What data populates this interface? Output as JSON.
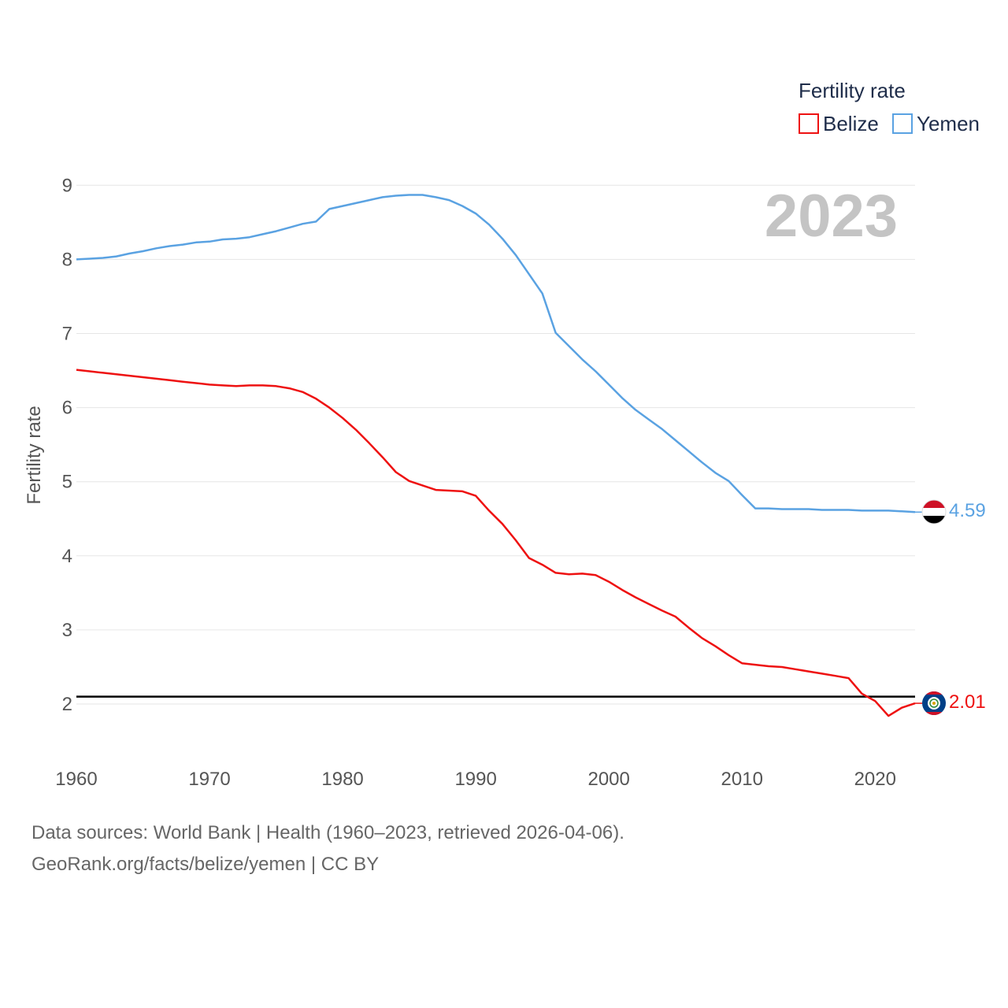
{
  "chart_data": {
    "type": "line",
    "title": "",
    "xlabel": "",
    "ylabel": "Fertility rate",
    "xlim": [
      1960,
      2023
    ],
    "ylim": [
      1.5,
      9.3
    ],
    "x_ticks": [
      1960,
      1970,
      1980,
      1990,
      2000,
      2010,
      2020
    ],
    "y_ticks": [
      2,
      3,
      4,
      5,
      6,
      7,
      8,
      9
    ],
    "grid": true,
    "legend_title": "Fertility rate",
    "legend_position": "top-right",
    "year_label": "2023",
    "reference_line": {
      "y": 2.1
    },
    "x": [
      1960,
      1961,
      1962,
      1963,
      1964,
      1965,
      1966,
      1967,
      1968,
      1969,
      1970,
      1971,
      1972,
      1973,
      1974,
      1975,
      1976,
      1977,
      1978,
      1979,
      1980,
      1981,
      1982,
      1983,
      1984,
      1985,
      1986,
      1987,
      1988,
      1989,
      1990,
      1991,
      1992,
      1993,
      1994,
      1995,
      1996,
      1997,
      1998,
      1999,
      2000,
      2001,
      2002,
      2003,
      2004,
      2005,
      2006,
      2007,
      2008,
      2009,
      2010,
      2011,
      2012,
      2013,
      2014,
      2015,
      2016,
      2017,
      2018,
      2019,
      2020,
      2021,
      2022,
      2023
    ],
    "series": [
      {
        "name": "Belize",
        "color": "#ee1111",
        "end_label": "2.01",
        "values": [
          6.51,
          6.49,
          6.47,
          6.45,
          6.43,
          6.41,
          6.39,
          6.37,
          6.35,
          6.33,
          6.31,
          6.3,
          6.29,
          6.3,
          6.3,
          6.29,
          6.26,
          6.21,
          6.12,
          6.0,
          5.86,
          5.7,
          5.52,
          5.33,
          5.13,
          5.01,
          4.95,
          4.89,
          4.88,
          4.87,
          4.81,
          4.61,
          4.43,
          4.21,
          3.97,
          3.88,
          3.77,
          3.75,
          3.76,
          3.74,
          3.65,
          3.54,
          3.44,
          3.35,
          3.26,
          3.18,
          3.03,
          2.89,
          2.78,
          2.66,
          2.55,
          2.53,
          2.51,
          2.5,
          2.47,
          2.44,
          2.41,
          2.38,
          2.35,
          2.14,
          2.04,
          1.84,
          1.95,
          2.01
        ]
      },
      {
        "name": "Yemen",
        "color": "#5aa2e2",
        "end_label": "4.59",
        "values": [
          8.0,
          8.01,
          8.02,
          8.04,
          8.08,
          8.11,
          8.15,
          8.18,
          8.2,
          8.23,
          8.24,
          8.27,
          8.28,
          8.3,
          8.34,
          8.38,
          8.43,
          8.48,
          8.51,
          8.68,
          8.72,
          8.76,
          8.8,
          8.84,
          8.86,
          8.87,
          8.87,
          8.84,
          8.8,
          8.72,
          8.62,
          8.47,
          8.28,
          8.06,
          7.8,
          7.54,
          7.01,
          6.83,
          6.65,
          6.49,
          6.31,
          6.13,
          5.97,
          5.84,
          5.71,
          5.56,
          5.41,
          5.26,
          5.12,
          5.01,
          4.82,
          4.64,
          4.64,
          4.63,
          4.63,
          4.63,
          4.62,
          4.62,
          4.62,
          4.61,
          4.61,
          4.61,
          4.6,
          4.59
        ]
      }
    ]
  },
  "footer": {
    "sources": "Data sources: World Bank | Health (1960–2023, retrieved 2026-04-06).",
    "credit": "GeoRank.org/facts/belize/yemen | CC BY"
  }
}
